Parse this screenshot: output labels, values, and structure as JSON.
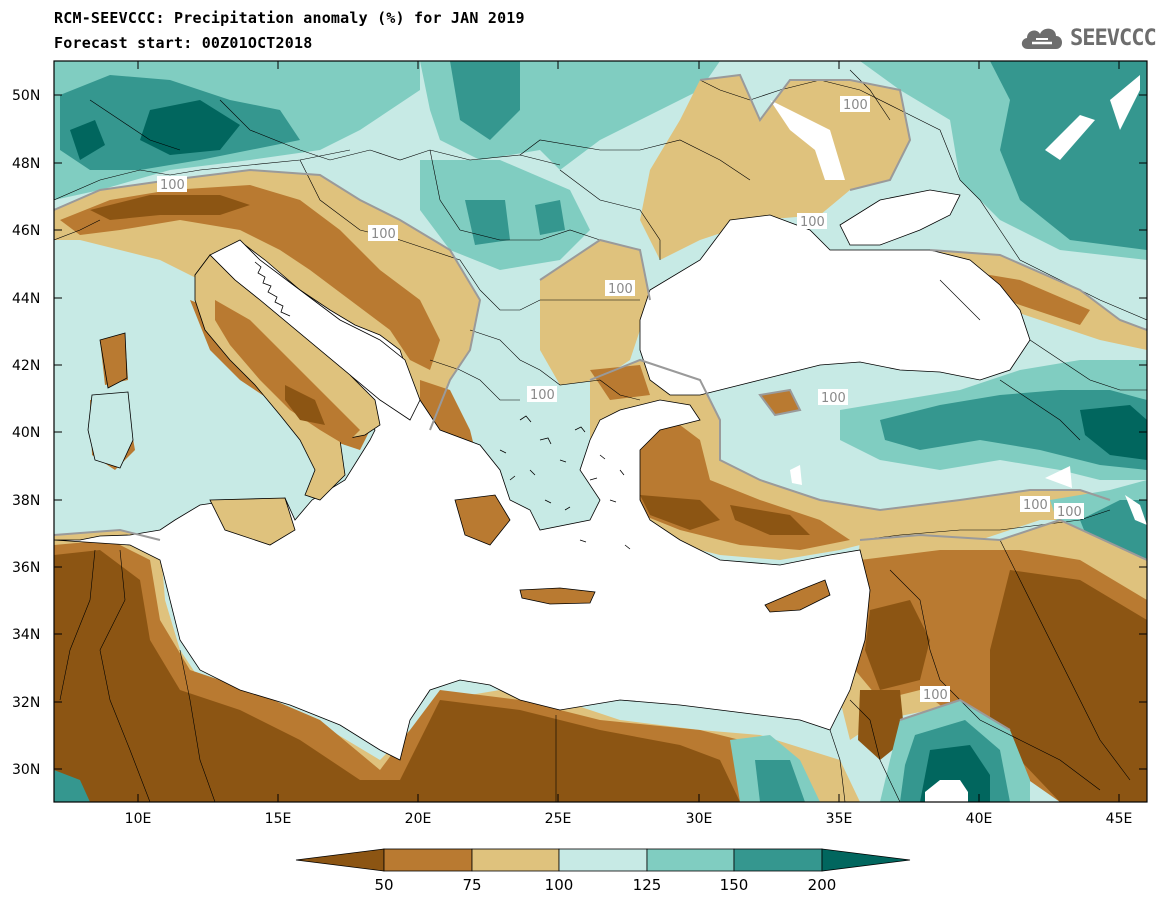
{
  "title": {
    "line1": "RCM-SEEVCCC: Precipitation anomaly (%) for JAN 2019",
    "line2": "Forecast start: 00Z01OCT2018"
  },
  "logo": {
    "text": "SEEVCCC",
    "icon": "cloud-icon"
  },
  "axes": {
    "lon_ticks": [
      "10E",
      "15E",
      "20E",
      "25E",
      "30E",
      "35E",
      "40E",
      "45E"
    ],
    "lat_ticks": [
      "50N",
      "48N",
      "46N",
      "44N",
      "42N",
      "40N",
      "38N",
      "36N",
      "34N",
      "32N",
      "30N"
    ]
  },
  "contour_labels": [
    "100",
    "100",
    "100",
    "100",
    "100",
    "100",
    "100",
    "100",
    "100",
    "100"
  ],
  "colorbar": {
    "labels": [
      "50",
      "75",
      "100",
      "125",
      "150",
      "200"
    ],
    "colors": [
      "#8c5513",
      "#b97a31",
      "#dfc27d",
      "#c7eae5",
      "#80cdc1",
      "#35978f",
      "#01665e"
    ]
  },
  "map_colors": {
    "very_dry": "#8c5513",
    "dry": "#b97a31",
    "slightly_dry": "#dfc27d",
    "slightly_wet": "#c7eae5",
    "wet": "#80cdc1",
    "very_wet": "#35978f",
    "extreme_wet": "#01665e",
    "sea": "#ffffff"
  }
}
